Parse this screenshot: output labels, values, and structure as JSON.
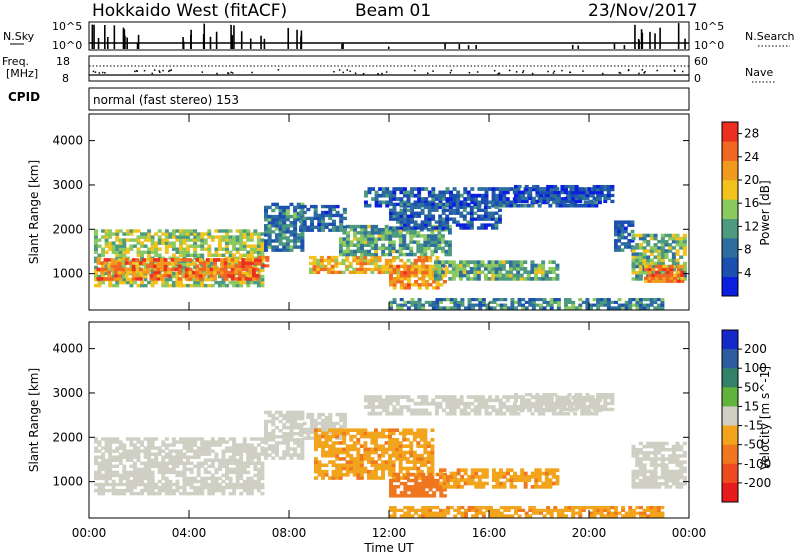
{
  "header": {
    "title": "Hokkaido West (fitACF)",
    "beam": "Beam 01",
    "date": "23/Nov/2017"
  },
  "strip_nsky": {
    "left_label": "N.Sky",
    "left_ticks": [
      "10^5",
      "10^0"
    ],
    "right_label": "N.Search",
    "right_ticks": [
      "10^5",
      "10^0"
    ]
  },
  "strip_freq": {
    "left_label": "Freq.",
    "left_unit": "[MHz]",
    "left_ticks": [
      "18",
      "8"
    ],
    "right_label": "Nave",
    "right_ticks": [
      "60",
      "0"
    ]
  },
  "strip_cpid": {
    "label": "CPID",
    "mode": "normal (fast stereo) 153"
  },
  "chart_data": [
    {
      "type": "heatmap",
      "panel": "power",
      "ylabel": "Slant Range [km]",
      "xlabel": "Time UT",
      "ylim": [
        180,
        4600
      ],
      "xlim": [
        0,
        24
      ],
      "yticks": [
        1000,
        2000,
        3000,
        4000
      ],
      "xticks": [
        "00:00",
        "04:00",
        "08:00",
        "12:00",
        "16:00",
        "20:00",
        "00:00"
      ],
      "colorbar": {
        "label": "Power [dB]",
        "ticks": [
          4,
          8,
          12,
          16,
          20,
          24,
          28
        ],
        "range": [
          0,
          30
        ],
        "colors": [
          "#0b1ee0",
          "#1b4fb0",
          "#2d6e9e",
          "#4d9a7f",
          "#8cc95f",
          "#f2c21d",
          "#f09a1e",
          "#f06622",
          "#ec2f1f"
        ]
      },
      "regions": [
        {
          "t0": 0.2,
          "t1": 7.0,
          "r0": 700,
          "r1": 2000,
          "db": 15
        },
        {
          "t0": 0.3,
          "t1": 6.8,
          "r0": 850,
          "r1": 1350,
          "db": 24
        },
        {
          "t0": 6.6,
          "t1": 7.2,
          "r0": 1150,
          "r1": 1400,
          "db": 26
        },
        {
          "t0": 7.0,
          "t1": 8.6,
          "r0": 1500,
          "r1": 2600,
          "db": 9
        },
        {
          "t0": 8.4,
          "t1": 10.3,
          "r0": 1950,
          "r1": 2550,
          "db": 8
        },
        {
          "t0": 8.8,
          "t1": 14.0,
          "r0": 1000,
          "r1": 1400,
          "db": 20
        },
        {
          "t0": 10.0,
          "t1": 14.5,
          "r0": 1400,
          "r1": 2100,
          "db": 12
        },
        {
          "t0": 12.0,
          "t1": 14.3,
          "r0": 650,
          "r1": 1200,
          "db": 22
        },
        {
          "t0": 13.8,
          "t1": 18.8,
          "r0": 850,
          "r1": 1300,
          "db": 13
        },
        {
          "t0": 11.0,
          "t1": 20.5,
          "r0": 2500,
          "r1": 2950,
          "db": 6
        },
        {
          "t0": 12.0,
          "t1": 16.5,
          "r0": 2000,
          "r1": 2600,
          "db": 6
        },
        {
          "t0": 17.0,
          "t1": 21.0,
          "r0": 2600,
          "r1": 3000,
          "db": 5
        },
        {
          "t0": 21.0,
          "t1": 21.8,
          "r0": 1500,
          "r1": 2200,
          "db": 7
        },
        {
          "t0": 21.7,
          "t1": 23.9,
          "r0": 850,
          "r1": 1900,
          "db": 14
        },
        {
          "t0": 22.2,
          "t1": 23.8,
          "r0": 800,
          "r1": 1200,
          "db": 24
        },
        {
          "t0": 12.0,
          "t1": 23.0,
          "r0": 200,
          "r1": 450,
          "db": 10
        }
      ]
    },
    {
      "type": "heatmap",
      "panel": "velocity",
      "ylabel": "Slant Range [km]",
      "xlabel": "Time UT",
      "ylim": [
        180,
        4600
      ],
      "xlim": [
        0,
        24
      ],
      "yticks": [
        1000,
        2000,
        3000,
        4000
      ],
      "xticks": [
        "00:00",
        "04:00",
        "08:00",
        "12:00",
        "16:00",
        "20:00",
        "00:00"
      ],
      "colorbar": {
        "label": "Velocity [m s^-1]",
        "ticks": [
          200,
          100,
          50,
          15,
          -15,
          -50,
          -100,
          -200
        ],
        "colors": [
          "#1728c8",
          "#2e5aa0",
          "#34816a",
          "#62b33c",
          "#cfcfc4",
          "#f1a41c",
          "#f0761f",
          "#ee4b21",
          "#e61c1c"
        ]
      },
      "regions": [
        {
          "t0": 0.2,
          "t1": 7.0,
          "r0": 700,
          "r1": 2000,
          "v": 0
        },
        {
          "t0": 7.0,
          "t1": 8.6,
          "r0": 1500,
          "r1": 2600,
          "v": 0
        },
        {
          "t0": 8.4,
          "t1": 10.3,
          "r0": 1950,
          "r1": 2550,
          "v": 0
        },
        {
          "t0": 9.0,
          "t1": 13.8,
          "r0": 1050,
          "r1": 2200,
          "v": -40
        },
        {
          "t0": 12.0,
          "t1": 14.3,
          "r0": 650,
          "r1": 1200,
          "v": -70
        },
        {
          "t0": 14.0,
          "t1": 18.8,
          "r0": 850,
          "r1": 1300,
          "v": -40
        },
        {
          "t0": 11.0,
          "t1": 20.5,
          "r0": 2500,
          "r1": 2950,
          "v": 0
        },
        {
          "t0": 17.0,
          "t1": 21.0,
          "r0": 2600,
          "r1": 3000,
          "v": 0
        },
        {
          "t0": 21.7,
          "t1": 23.9,
          "r0": 850,
          "r1": 1900,
          "v": 0
        },
        {
          "t0": 12.0,
          "t1": 23.0,
          "r0": 200,
          "r1": 450,
          "v": -40
        }
      ]
    }
  ],
  "colors": {
    "axis": "#000000",
    "background": "#ffffff"
  }
}
